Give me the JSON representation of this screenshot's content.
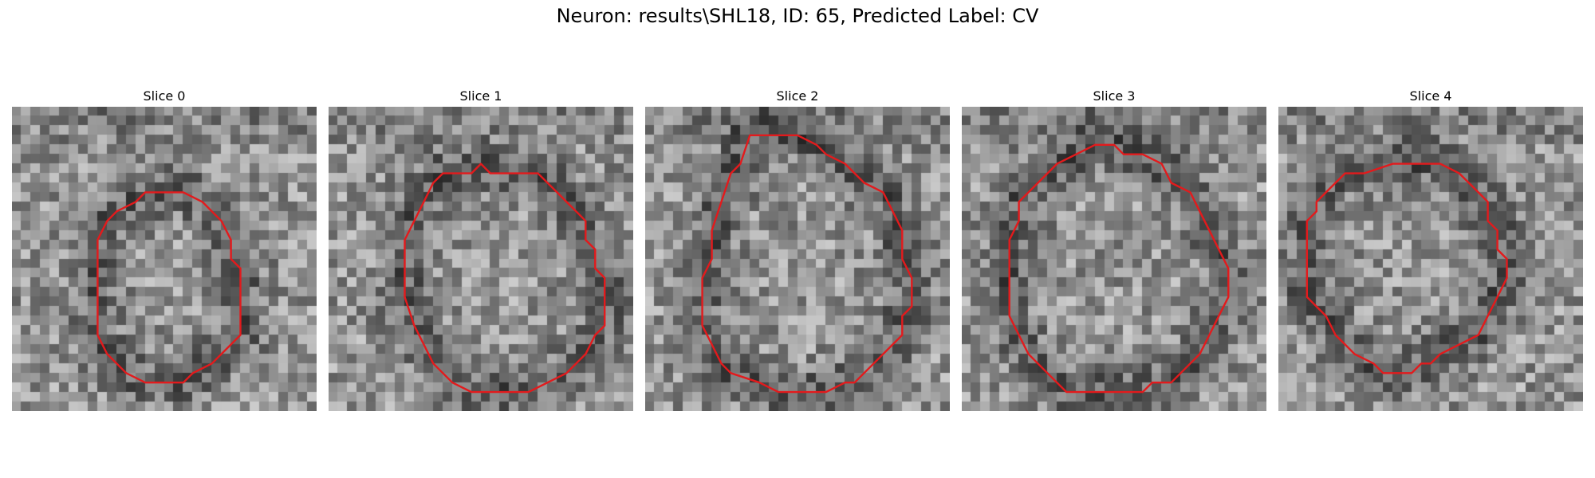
{
  "figure": {
    "suptitle": "Neuron: results\\SHL18, ID: 65, Predicted Label: CV",
    "contour_color": "#e31a1c",
    "colormap": "gray",
    "grid_size": 32
  },
  "panels": [
    {
      "title": "Slice 0",
      "contour": [
        [
          14,
          9
        ],
        [
          18,
          9
        ],
        [
          20,
          10
        ],
        [
          22,
          12
        ],
        [
          23,
          14
        ],
        [
          23,
          16
        ],
        [
          24,
          17
        ],
        [
          24,
          19
        ],
        [
          24,
          21
        ],
        [
          24,
          24
        ],
        [
          23,
          25
        ],
        [
          22,
          26
        ],
        [
          21,
          27
        ],
        [
          19,
          28
        ],
        [
          18,
          29
        ],
        [
          14,
          29
        ],
        [
          12,
          28
        ],
        [
          11,
          27
        ],
        [
          10,
          26
        ],
        [
          9,
          24
        ],
        [
          9,
          22
        ],
        [
          9,
          18
        ],
        [
          9,
          14
        ],
        [
          10,
          12
        ],
        [
          11,
          11
        ],
        [
          13,
          10
        ]
      ]
    },
    {
      "title": "Slice 1",
      "contour": [
        [
          12,
          7
        ],
        [
          15,
          7
        ],
        [
          16,
          6
        ],
        [
          17,
          7
        ],
        [
          22,
          7
        ],
        [
          24,
          9
        ],
        [
          25,
          10
        ],
        [
          26,
          11
        ],
        [
          27,
          12
        ],
        [
          27,
          14
        ],
        [
          28,
          15
        ],
        [
          28,
          17
        ],
        [
          29,
          18
        ],
        [
          29,
          23
        ],
        [
          28,
          24
        ],
        [
          27,
          26
        ],
        [
          25,
          28
        ],
        [
          23,
          29
        ],
        [
          21,
          30
        ],
        [
          15,
          30
        ],
        [
          13,
          29
        ],
        [
          11,
          27
        ],
        [
          10,
          25
        ],
        [
          9,
          23
        ],
        [
          8,
          20
        ],
        [
          8,
          14
        ],
        [
          9,
          12
        ],
        [
          10,
          10
        ],
        [
          11,
          8
        ]
      ]
    },
    {
      "title": "Slice 2",
      "contour": [
        [
          11,
          3
        ],
        [
          16,
          3
        ],
        [
          18,
          4
        ],
        [
          19,
          5
        ],
        [
          21,
          6
        ],
        [
          23,
          8
        ],
        [
          25,
          9
        ],
        [
          26,
          11
        ],
        [
          27,
          13
        ],
        [
          27,
          16
        ],
        [
          28,
          18
        ],
        [
          28,
          21
        ],
        [
          27,
          22
        ],
        [
          27,
          24
        ],
        [
          26,
          25
        ],
        [
          24,
          27
        ],
        [
          22,
          29
        ],
        [
          21,
          29
        ],
        [
          19,
          30
        ],
        [
          14,
          30
        ],
        [
          12,
          29
        ],
        [
          9,
          28
        ],
        [
          8,
          27
        ],
        [
          7,
          25
        ],
        [
          6,
          23
        ],
        [
          6,
          21
        ],
        [
          6,
          18
        ],
        [
          7,
          16
        ],
        [
          7,
          13
        ],
        [
          8,
          10
        ],
        [
          9,
          7
        ],
        [
          10,
          6
        ]
      ]
    },
    {
      "title": "Slice 3",
      "contour": [
        [
          12,
          5
        ],
        [
          14,
          4
        ],
        [
          16,
          4
        ],
        [
          17,
          5
        ],
        [
          19,
          5
        ],
        [
          21,
          6
        ],
        [
          22,
          8
        ],
        [
          24,
          9
        ],
        [
          25,
          11
        ],
        [
          26,
          13
        ],
        [
          27,
          15
        ],
        [
          28,
          17
        ],
        [
          28,
          20
        ],
        [
          27,
          22
        ],
        [
          26,
          24
        ],
        [
          25,
          26
        ],
        [
          24,
          27
        ],
        [
          22,
          29
        ],
        [
          20,
          29
        ],
        [
          19,
          30
        ],
        [
          11,
          30
        ],
        [
          9,
          28
        ],
        [
          7,
          26
        ],
        [
          6,
          24
        ],
        [
          5,
          22
        ],
        [
          5,
          14
        ],
        [
          6,
          12
        ],
        [
          6,
          10
        ],
        [
          8,
          8
        ],
        [
          9,
          7
        ],
        [
          10,
          6
        ]
      ]
    },
    {
      "title": "Slice 4",
      "contour": [
        [
          12,
          6
        ],
        [
          17,
          6
        ],
        [
          19,
          7
        ],
        [
          20,
          8
        ],
        [
          21,
          9
        ],
        [
          22,
          10
        ],
        [
          22,
          12
        ],
        [
          23,
          13
        ],
        [
          23,
          15
        ],
        [
          24,
          16
        ],
        [
          24,
          18
        ],
        [
          23,
          20
        ],
        [
          22,
          22
        ],
        [
          21,
          24
        ],
        [
          19,
          25
        ],
        [
          17,
          26
        ],
        [
          16,
          27
        ],
        [
          15,
          27
        ],
        [
          14,
          28
        ],
        [
          11,
          28
        ],
        [
          10,
          27
        ],
        [
          8,
          26
        ],
        [
          7,
          25
        ],
        [
          6,
          24
        ],
        [
          5,
          22
        ],
        [
          3,
          20
        ],
        [
          3,
          12
        ],
        [
          4,
          11
        ],
        [
          4,
          10
        ],
        [
          5,
          9
        ],
        [
          6,
          8
        ],
        [
          7,
          7
        ],
        [
          9,
          7
        ]
      ]
    }
  ]
}
